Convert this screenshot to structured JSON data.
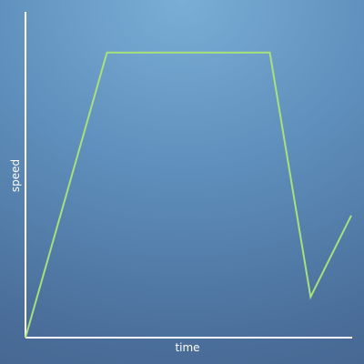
{
  "colors": {
    "line": "#a8e07c",
    "axis": "#ffffff",
    "text": "#ffffff"
  },
  "chart_data": {
    "type": "line",
    "title": "",
    "xlabel": "time",
    "ylabel": "speed",
    "xlim": [
      0,
      10
    ],
    "ylim": [
      0,
      10
    ],
    "grid": false,
    "series": [
      {
        "x": [
          0,
          2.5,
          7.5,
          8.75,
          10
        ],
        "values": [
          0,
          8.75,
          8.75,
          1.25,
          3.75
        ]
      }
    ]
  }
}
